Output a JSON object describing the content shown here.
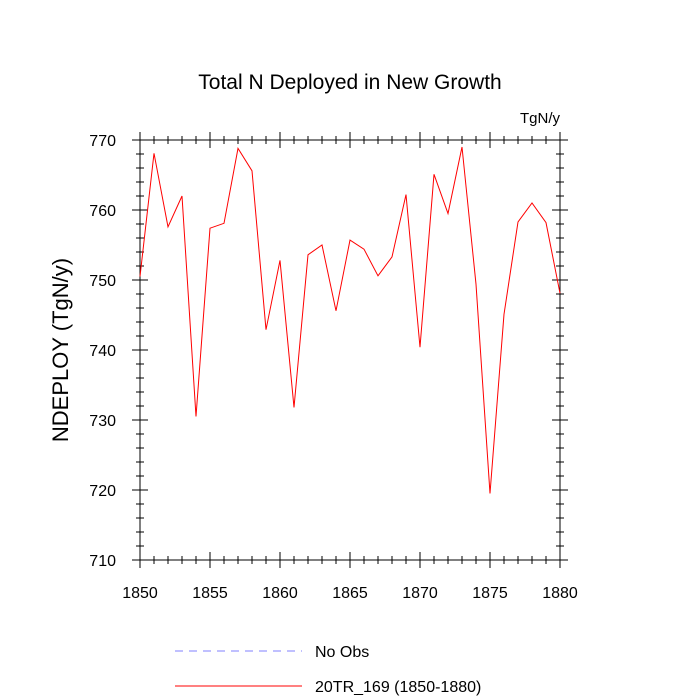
{
  "chart_data": {
    "type": "line",
    "title": "Total N Deployed in New Growth",
    "units_label": "TgN/y",
    "ylabel": "NDEPLOY  (TgN/y)",
    "xlabel": "",
    "xlim": [
      1850,
      1880
    ],
    "ylim": [
      710,
      770
    ],
    "x_ticks": [
      1850,
      1855,
      1860,
      1865,
      1870,
      1875,
      1880
    ],
    "y_ticks": [
      710,
      720,
      730,
      740,
      750,
      760,
      770
    ],
    "x_minor_step": 1,
    "y_minor_step": 2,
    "legend_position": "bottom",
    "series": [
      {
        "name": "No Obs",
        "color": "#8080ff",
        "style": "dashed",
        "x": [],
        "values": []
      },
      {
        "name": "20TR_169 (1850-1880)",
        "color": "#ff0000",
        "style": "solid",
        "x": [
          1850,
          1851,
          1852,
          1853,
          1854,
          1855,
          1856,
          1857,
          1858,
          1859,
          1860,
          1861,
          1862,
          1863,
          1864,
          1865,
          1866,
          1867,
          1868,
          1869,
          1870,
          1871,
          1872,
          1873,
          1874,
          1875,
          1876,
          1877,
          1878,
          1879,
          1880
        ],
        "values": [
          750.5,
          768.1,
          757.6,
          762.0,
          730.5,
          757.4,
          758.1,
          768.8,
          765.6,
          742.9,
          752.8,
          731.8,
          753.6,
          755.0,
          745.6,
          755.7,
          754.4,
          750.6,
          753.3,
          762.2,
          740.4,
          765.1,
          759.5,
          769.0,
          749.4,
          719.5,
          745.1,
          758.3,
          761.0,
          758.2,
          748.1
        ]
      }
    ]
  }
}
